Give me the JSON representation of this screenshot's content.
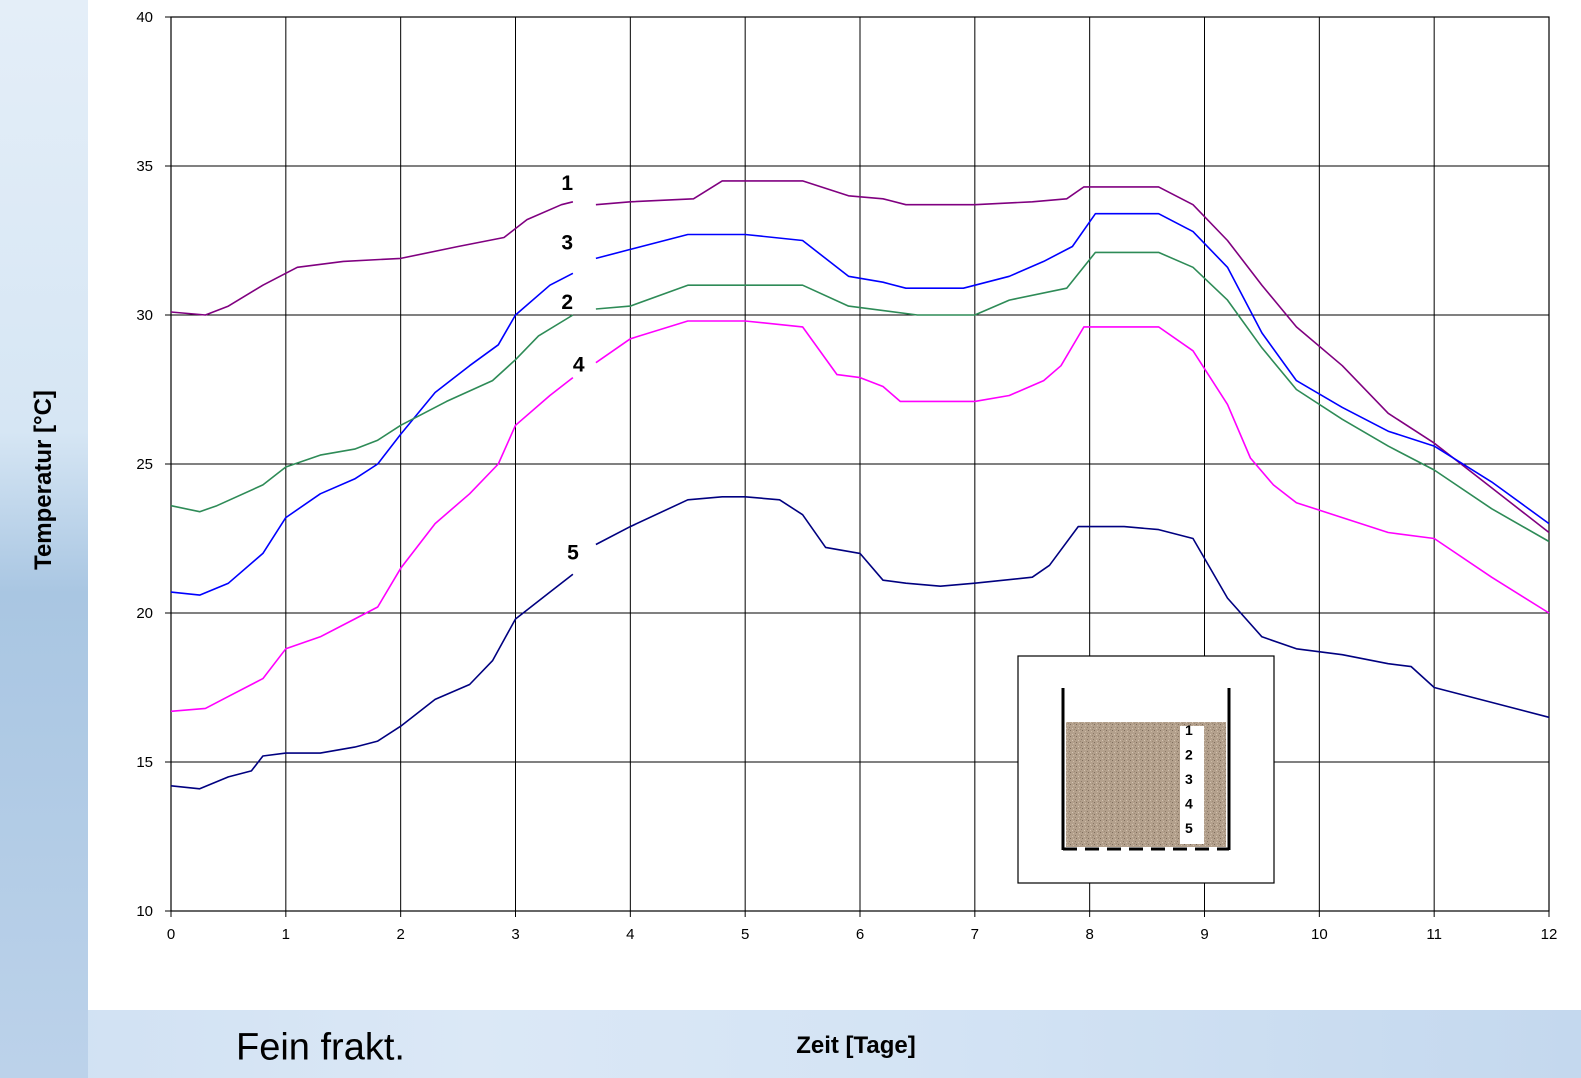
{
  "caption": "Fein frakt.",
  "chart_data": {
    "type": "line",
    "xlabel": "Zeit [Tage]",
    "ylabel": "Temperatur [°C]",
    "xlim": [
      0,
      12
    ],
    "ylim": [
      10,
      40
    ],
    "xticks": [
      "0",
      "1",
      "2",
      "3",
      "4",
      "5",
      "6",
      "7",
      "8",
      "9",
      "10",
      "11",
      "12"
    ],
    "yticks": [
      "10",
      "15",
      "20",
      "25",
      "30",
      "35",
      "40"
    ],
    "grid": true,
    "series": [
      {
        "name": "1",
        "color": "#800080",
        "x": [
          0,
          0.3,
          0.5,
          0.8,
          1.1,
          1.5,
          2,
          2.5,
          2.9,
          3.1,
          3.4,
          3.5,
          3.6,
          3.7,
          4,
          4.55,
          4.8,
          5.5,
          5.9,
          6.2,
          6.4,
          7,
          7.5,
          7.8,
          7.95,
          8.6,
          8.9,
          9.2,
          9.5,
          9.8,
          10.2,
          10.6,
          11,
          11.5,
          12
        ],
        "y": [
          30.1,
          30,
          30.3,
          31,
          31.6,
          31.8,
          31.9,
          32.3,
          32.6,
          33.2,
          33.7,
          33.8,
          null,
          33.7,
          33.8,
          33.9,
          34.5,
          34.5,
          34,
          33.9,
          33.7,
          33.7,
          33.8,
          33.9,
          34.3,
          34.3,
          33.7,
          32.5,
          31,
          29.6,
          28.3,
          26.7,
          25.7,
          24.2,
          22.7
        ]
      },
      {
        "name": "3",
        "color": "#0000ff",
        "x": [
          0,
          0.25,
          0.5,
          0.8,
          1,
          1.3,
          1.6,
          1.8,
          2,
          2.3,
          2.6,
          2.85,
          3,
          3.3,
          3.5,
          3.6,
          3.7,
          4,
          4.5,
          5,
          5.5,
          5.9,
          6.2,
          6.4,
          6.9,
          7.3,
          7.6,
          7.85,
          8.05,
          8.6,
          8.9,
          9.2,
          9.5,
          9.8,
          10.2,
          10.6,
          11,
          11.5,
          12
        ],
        "y": [
          20.7,
          20.6,
          21,
          22,
          23.2,
          24,
          24.5,
          25,
          26,
          27.4,
          28.3,
          29,
          30,
          31,
          31.4,
          null,
          31.9,
          32.2,
          32.7,
          32.7,
          32.5,
          31.3,
          31.1,
          30.9,
          30.9,
          31.3,
          31.8,
          32.3,
          33.4,
          33.4,
          32.8,
          31.6,
          29.4,
          27.8,
          26.9,
          26.1,
          25.6,
          24.4,
          23
        ]
      },
      {
        "name": "2",
        "color": "#2e8b57",
        "x": [
          0,
          0.25,
          0.4,
          0.8,
          1,
          1.3,
          1.6,
          1.8,
          2,
          2.4,
          2.8,
          3,
          3.2,
          3.5,
          3.6,
          3.7,
          4,
          4.5,
          5,
          5.5,
          5.9,
          6.5,
          7,
          7.3,
          7.8,
          8.05,
          8.6,
          8.9,
          9.2,
          9.5,
          9.8,
          10.2,
          10.6,
          11,
          11.5,
          12
        ],
        "y": [
          23.6,
          23.4,
          23.6,
          24.3,
          24.9,
          25.3,
          25.5,
          25.8,
          26.3,
          27.1,
          27.8,
          28.5,
          29.3,
          30,
          null,
          30.2,
          30.3,
          31,
          31,
          31,
          30.3,
          30,
          30,
          30.5,
          30.9,
          32.1,
          32.1,
          31.6,
          30.5,
          28.9,
          27.5,
          26.5,
          25.6,
          24.8,
          23.5,
          22.4
        ]
      },
      {
        "name": "4",
        "color": "#ff00ff",
        "x": [
          0,
          0.3,
          0.5,
          0.8,
          1,
          1.3,
          1.6,
          1.8,
          2,
          2.3,
          2.6,
          2.85,
          3,
          3.3,
          3.5,
          3.6,
          3.7,
          4,
          4.5,
          5,
          5.5,
          5.8,
          6,
          6.2,
          6.35,
          7,
          7.3,
          7.6,
          7.75,
          7.95,
          8.6,
          8.9,
          9.2,
          9.4,
          9.6,
          9.8,
          10.2,
          10.6,
          11,
          11.5,
          12
        ],
        "y": [
          16.7,
          16.8,
          17.2,
          17.8,
          18.8,
          19.2,
          19.8,
          20.2,
          21.5,
          23,
          24,
          25,
          26.3,
          27.3,
          27.9,
          null,
          28.4,
          29.2,
          29.8,
          29.8,
          29.6,
          28,
          27.9,
          27.6,
          27.1,
          27.1,
          27.3,
          27.8,
          28.3,
          29.6,
          29.6,
          28.8,
          27,
          25.2,
          24.3,
          23.7,
          23.2,
          22.7,
          22.5,
          21.2,
          20
        ]
      },
      {
        "name": "5",
        "color": "#000080",
        "x": [
          0,
          0.25,
          0.5,
          0.7,
          0.8,
          1,
          1.3,
          1.6,
          1.8,
          2,
          2.3,
          2.6,
          2.8,
          3,
          3.3,
          3.5,
          3.6,
          3.7,
          4,
          4.5,
          4.8,
          5,
          5.3,
          5.5,
          5.7,
          6,
          6.2,
          6.4,
          6.7,
          7,
          7.5,
          7.65,
          7.9,
          8.3,
          8.6,
          8.9,
          9.2,
          9.5,
          9.8,
          10.2,
          10.6,
          10.8,
          11,
          11.5,
          12
        ],
        "y": [
          14.2,
          14.1,
          14.5,
          14.7,
          15.2,
          15.3,
          15.3,
          15.5,
          15.7,
          16.2,
          17.1,
          17.6,
          18.4,
          19.8,
          20.7,
          21.3,
          null,
          22.3,
          22.9,
          23.8,
          23.9,
          23.9,
          23.8,
          23.3,
          22.2,
          22,
          21.1,
          21,
          20.9,
          21,
          21.2,
          21.6,
          22.9,
          22.9,
          22.8,
          22.5,
          20.5,
          19.2,
          18.8,
          18.6,
          18.3,
          18.2,
          17.5,
          17,
          16.5
        ]
      }
    ],
    "inset": {
      "labels": [
        "1",
        "2",
        "3",
        "4",
        "5"
      ]
    }
  }
}
